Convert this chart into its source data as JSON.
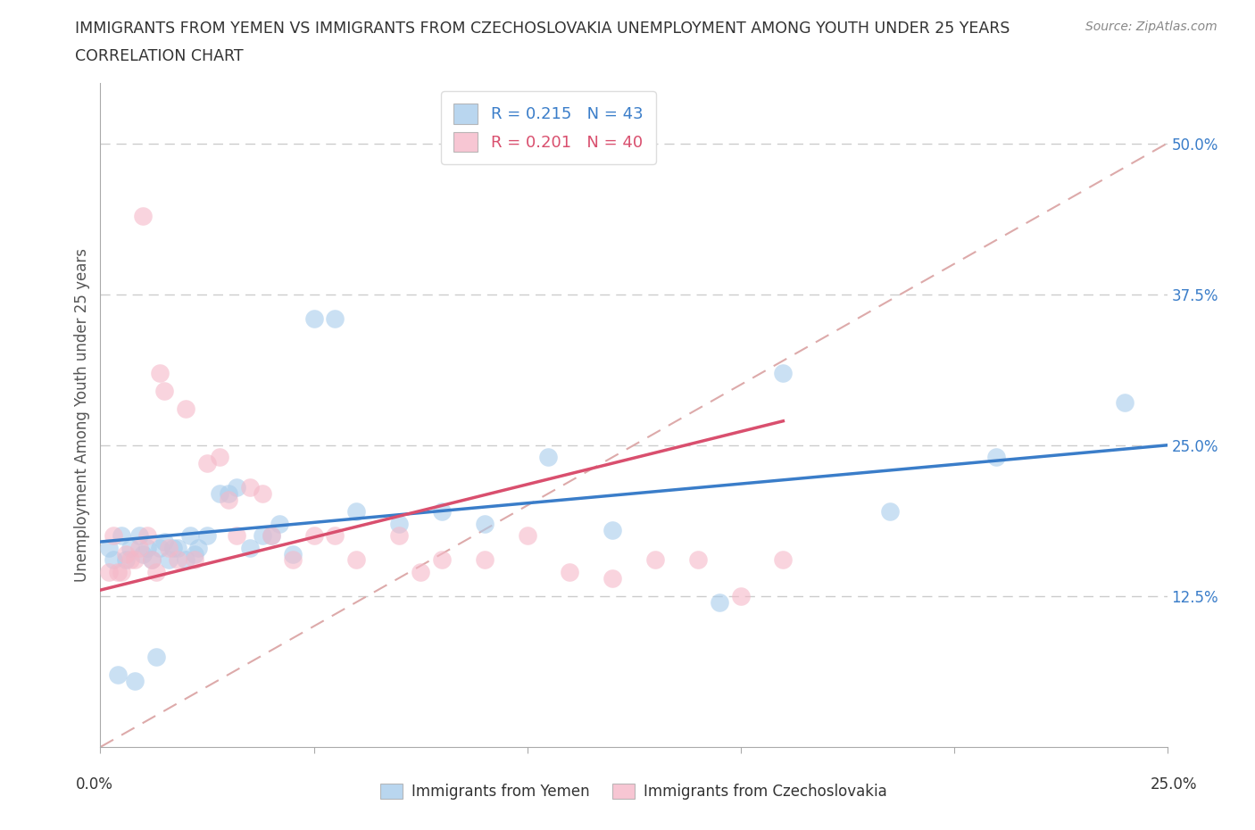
{
  "title_line1": "IMMIGRANTS FROM YEMEN VS IMMIGRANTS FROM CZECHOSLOVAKIA UNEMPLOYMENT AMONG YOUTH UNDER 25 YEARS",
  "title_line2": "CORRELATION CHART",
  "source": "Source: ZipAtlas.com",
  "ylabel": "Unemployment Among Youth under 25 years",
  "ytick_labels": [
    "12.5%",
    "25.0%",
    "37.5%",
    "50.0%"
  ],
  "ytick_values": [
    0.125,
    0.25,
    0.375,
    0.5
  ],
  "xlim": [
    0.0,
    0.25
  ],
  "ylim": [
    0.0,
    0.55
  ],
  "legend_R_blue": "R = 0.215",
  "legend_N_blue": "N = 43",
  "legend_R_pink": "R = 0.201",
  "legend_N_pink": "N = 40",
  "legend_blue_label": "Immigrants from Yemen",
  "legend_pink_label": "Immigrants from Czechoslovakia",
  "blue_color": "#a8ccec",
  "pink_color": "#f5b8c8",
  "blue_line_color": "#3a7dc9",
  "pink_line_color": "#d94f6e",
  "diag_color": "#ddaaaa",
  "yemen_x": [
    0.002,
    0.003,
    0.004,
    0.005,
    0.006,
    0.007,
    0.008,
    0.009,
    0.01,
    0.011,
    0.012,
    0.013,
    0.014,
    0.015,
    0.016,
    0.017,
    0.018,
    0.02,
    0.021,
    0.022,
    0.023,
    0.025,
    0.028,
    0.03,
    0.032,
    0.035,
    0.038,
    0.04,
    0.042,
    0.045,
    0.05,
    0.055,
    0.06,
    0.07,
    0.08,
    0.09,
    0.105,
    0.12,
    0.145,
    0.16,
    0.185,
    0.21,
    0.24
  ],
  "yemen_y": [
    0.165,
    0.155,
    0.06,
    0.175,
    0.155,
    0.165,
    0.055,
    0.175,
    0.16,
    0.165,
    0.155,
    0.075,
    0.165,
    0.17,
    0.155,
    0.165,
    0.165,
    0.155,
    0.175,
    0.16,
    0.165,
    0.175,
    0.21,
    0.21,
    0.215,
    0.165,
    0.175,
    0.175,
    0.185,
    0.16,
    0.355,
    0.355,
    0.195,
    0.185,
    0.195,
    0.185,
    0.24,
    0.18,
    0.12,
    0.31,
    0.195,
    0.24,
    0.285
  ],
  "czech_x": [
    0.002,
    0.003,
    0.004,
    0.005,
    0.006,
    0.007,
    0.008,
    0.009,
    0.01,
    0.011,
    0.012,
    0.013,
    0.014,
    0.015,
    0.016,
    0.018,
    0.02,
    0.022,
    0.025,
    0.028,
    0.03,
    0.032,
    0.035,
    0.038,
    0.04,
    0.045,
    0.05,
    0.055,
    0.06,
    0.07,
    0.075,
    0.08,
    0.09,
    0.1,
    0.11,
    0.12,
    0.13,
    0.14,
    0.15,
    0.16
  ],
  "czech_y": [
    0.145,
    0.175,
    0.145,
    0.145,
    0.16,
    0.155,
    0.155,
    0.165,
    0.44,
    0.175,
    0.155,
    0.145,
    0.31,
    0.295,
    0.165,
    0.155,
    0.28,
    0.155,
    0.235,
    0.24,
    0.205,
    0.175,
    0.215,
    0.21,
    0.175,
    0.155,
    0.175,
    0.175,
    0.155,
    0.175,
    0.145,
    0.155,
    0.155,
    0.175,
    0.145,
    0.14,
    0.155,
    0.155,
    0.125,
    0.155
  ],
  "blue_trend": [
    0.17,
    0.25
  ],
  "pink_trend_x": [
    0.0,
    0.16
  ],
  "pink_trend_y": [
    0.13,
    0.27
  ]
}
